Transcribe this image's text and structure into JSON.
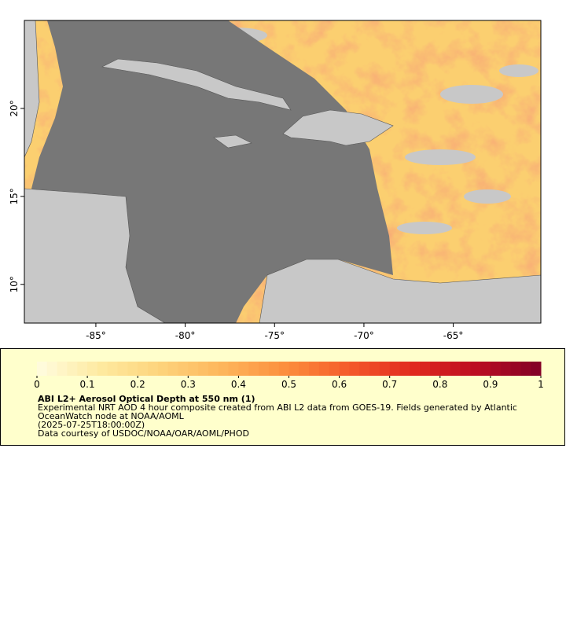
{
  "map": {
    "xlim": [
      -89,
      -60.1
    ],
    "ylim": [
      7.8,
      25
    ],
    "xticks": [
      {
        "value": -85,
        "label": "-85°"
      },
      {
        "value": -80,
        "label": "-80°"
      },
      {
        "value": -75,
        "label": "-75°"
      },
      {
        "value": -70,
        "label": "-70°"
      },
      {
        "value": -65,
        "label": "-65°"
      }
    ],
    "yticks": [
      {
        "value": 10,
        "label": "10°"
      },
      {
        "value": 15,
        "label": "15°"
      },
      {
        "value": 20,
        "label": "20°"
      }
    ]
  },
  "colorbar": {
    "range": [
      0,
      1
    ],
    "ticks": [
      0,
      0.1,
      0.2,
      0.3,
      0.4,
      0.5,
      0.6,
      0.7,
      0.8,
      0.9,
      1
    ],
    "colormap": [
      "#fffde0",
      "#feeaa0",
      "#fdd27a",
      "#fdb45a",
      "#fc8c3c",
      "#f4582a",
      "#e0281e",
      "#bb0c22",
      "#800026"
    ]
  },
  "legend": {
    "title": "ABI L2+ Aerosol Optical Depth at 550 nm (1)",
    "lines": [
      "Experimental NRT AOD 4 hour composite created from ABI L2 data from GOES-19. Fields generated by Atlantic",
      "OceanWatch node at NOAA/AOML",
      "(2025-07-25T18:00:00Z)",
      "Data courtesy of USDOC/NOAA/OAR/AOML/PHOD"
    ]
  }
}
